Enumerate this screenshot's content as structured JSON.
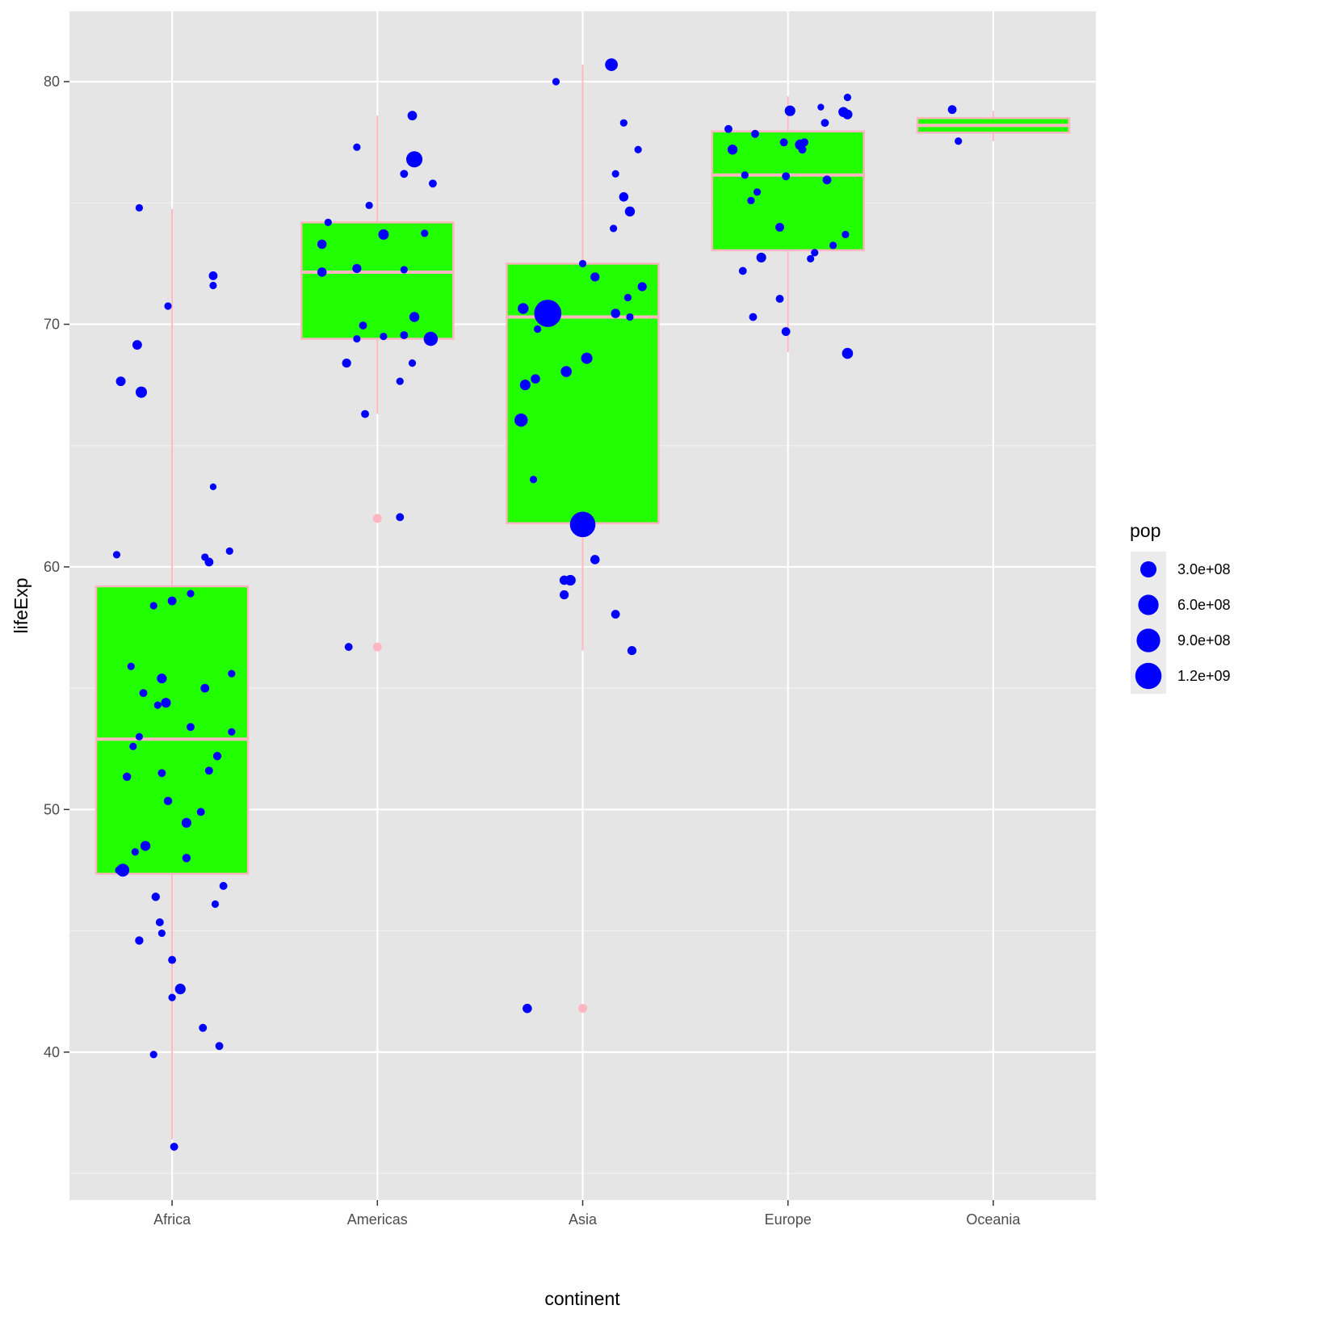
{
  "chart_data": {
    "type": "boxplot+jitter",
    "xlabel": "continent",
    "ylabel": "lifeExp",
    "ylim": [
      33.9,
      82.9
    ],
    "yticks": [
      "40",
      "50",
      "60",
      "70",
      "80"
    ],
    "ytick_values": [
      40,
      50,
      60,
      70,
      80
    ],
    "yminor": [
      35,
      45,
      55,
      65,
      75
    ],
    "categories": [
      "Africa",
      "Americas",
      "Asia",
      "Europe",
      "Oceania"
    ],
    "box_fill": "#22ff00",
    "box_line": "#ffb6c1",
    "point_color": "#0000ff",
    "outlier_color": "#ffb6c1",
    "boxes": [
      {
        "category": "Africa",
        "whisker_low": 36.4,
        "q1": 47.35,
        "median": 52.9,
        "q3": 59.2,
        "whisker_high": 74.75,
        "outliers": []
      },
      {
        "category": "Americas",
        "whisker_low": 66.3,
        "q1": 69.4,
        "median": 72.15,
        "q3": 74.2,
        "whisker_high": 78.6,
        "outliers": [
          62.0,
          56.7
        ]
      },
      {
        "category": "Asia",
        "whisker_low": 56.55,
        "q1": 61.8,
        "median": 70.3,
        "q3": 72.5,
        "whisker_high": 80.7,
        "outliers": [
          41.8
        ]
      },
      {
        "category": "Europe",
        "whisker_low": 68.85,
        "q1": 73.05,
        "median": 76.15,
        "q3": 77.95,
        "whisker_high": 79.4,
        "outliers": []
      },
      {
        "category": "Oceania",
        "whisker_low": 77.55,
        "q1": 77.9,
        "median": 78.2,
        "q3": 78.5,
        "whisker_high": 78.8,
        "outliers": []
      }
    ],
    "points_fields": [
      "jitter_offset",
      "lifeExp",
      "pop_millions"
    ],
    "points": {
      "Africa": [
        [
          -0.16,
          74.8,
          5
        ],
        [
          -0.02,
          70.75,
          5
        ],
        [
          -0.17,
          69.15,
          35
        ],
        [
          -0.25,
          67.65,
          35
        ],
        [
          -0.15,
          67.2,
          80
        ],
        [
          0.2,
          72.0,
          20
        ],
        [
          0.2,
          71.6,
          5
        ],
        [
          0.2,
          63.3,
          1
        ],
        [
          -0.27,
          60.5,
          5
        ],
        [
          0.16,
          60.4,
          5
        ],
        [
          0.18,
          60.2,
          20
        ],
        [
          0.28,
          60.65,
          5
        ],
        [
          0.09,
          58.9,
          5
        ],
        [
          0,
          58.6,
          20
        ],
        [
          -0.09,
          58.4,
          5
        ],
        [
          -0.2,
          55.9,
          5
        ],
        [
          -0.05,
          55.4,
          40
        ],
        [
          0.29,
          55.6,
          5
        ],
        [
          -0.14,
          54.8,
          10
        ],
        [
          0.16,
          55.0,
          20
        ],
        [
          -0.03,
          54.4,
          40
        ],
        [
          -0.07,
          54.3,
          5
        ],
        [
          -0.16,
          53.0,
          5
        ],
        [
          0.09,
          53.4,
          10
        ],
        [
          0.29,
          53.2,
          5
        ],
        [
          -0.19,
          52.6,
          5
        ],
        [
          0.22,
          52.2,
          15
        ],
        [
          -0.22,
          51.35,
          15
        ],
        [
          -0.05,
          51.5,
          10
        ],
        [
          0.18,
          51.6,
          10
        ],
        [
          -0.02,
          50.35,
          15
        ],
        [
          0.14,
          49.9,
          10
        ],
        [
          0.07,
          49.45,
          40
        ],
        [
          -0.13,
          48.5,
          45
        ],
        [
          -0.18,
          48.25,
          5
        ],
        [
          0.07,
          48.0,
          15
        ],
        [
          -0.26,
          47.5,
          5
        ],
        [
          -0.24,
          47.5,
          135
        ],
        [
          0.25,
          46.85,
          10
        ],
        [
          -0.08,
          46.4,
          15
        ],
        [
          0.21,
          46.1,
          5
        ],
        [
          -0.06,
          45.35,
          10
        ],
        [
          -0.05,
          44.9,
          5
        ],
        [
          -0.16,
          44.6,
          15
        ],
        [
          0,
          43.8,
          10
        ],
        [
          0.04,
          42.6,
          60
        ],
        [
          0,
          42.25,
          5
        ],
        [
          0.15,
          41.0,
          10
        ],
        [
          0.23,
          40.25,
          10
        ],
        [
          -0.09,
          39.9,
          5
        ],
        [
          0.01,
          36.1,
          10
        ]
      ],
      "Americas": [
        [
          -0.1,
          77.3,
          5
        ],
        [
          -0.04,
          74.9,
          5
        ],
        [
          -0.24,
          74.2,
          5
        ],
        [
          -0.27,
          73.3,
          30
        ],
        [
          0.03,
          73.7,
          55
        ],
        [
          0.23,
          73.75,
          5
        ],
        [
          0.17,
          78.6,
          33
        ],
        [
          0.18,
          76.8,
          300
        ],
        [
          0.13,
          76.2,
          10
        ],
        [
          0.27,
          75.8,
          10
        ],
        [
          -0.27,
          72.15,
          30
        ],
        [
          -0.1,
          72.3,
          25
        ],
        [
          0.13,
          72.25,
          5
        ],
        [
          0.18,
          70.3,
          45
        ],
        [
          -0.07,
          69.95,
          10
        ],
        [
          -0.1,
          69.4,
          5
        ],
        [
          0.03,
          69.5,
          5
        ],
        [
          0.13,
          69.55,
          10
        ],
        [
          0.26,
          69.4,
          190
        ],
        [
          -0.15,
          68.4,
          25
        ],
        [
          0.17,
          68.4,
          5
        ],
        [
          0.11,
          67.65,
          5
        ],
        [
          -0.06,
          66.3,
          10
        ],
        [
          0.11,
          62.05,
          10
        ],
        [
          -0.14,
          56.7,
          10
        ]
      ],
      "Asia": [
        [
          -0.13,
          80.0,
          5
        ],
        [
          0.14,
          80.7,
          127
        ],
        [
          0.2,
          78.3,
          5
        ],
        [
          0.27,
          77.2,
          5
        ],
        [
          0.16,
          76.2,
          5
        ],
        [
          0.2,
          75.25,
          30
        ],
        [
          0.23,
          74.65,
          45
        ],
        [
          0.15,
          73.95,
          5
        ],
        [
          0,
          72.5,
          5
        ],
        [
          0.06,
          71.95,
          25
        ],
        [
          0.29,
          71.55,
          25
        ],
        [
          0.22,
          71.1,
          5
        ],
        [
          -0.17,
          70.45,
          1318
        ],
        [
          -0.29,
          70.65,
          65
        ],
        [
          0.16,
          70.45,
          30
        ],
        [
          0.23,
          70.3,
          5
        ],
        [
          -0.22,
          69.8,
          5
        ],
        [
          0.02,
          68.6,
          80
        ],
        [
          -0.08,
          68.05,
          70
        ],
        [
          -0.28,
          67.5,
          60
        ],
        [
          -0.23,
          67.75,
          30
        ],
        [
          -0.3,
          66.05,
          150
        ],
        [
          -0.24,
          63.6,
          5
        ],
        [
          0,
          61.75,
          1110
        ],
        [
          0.06,
          60.3,
          30
        ],
        [
          -0.09,
          59.45,
          30
        ],
        [
          -0.06,
          59.45,
          60
        ],
        [
          -0.09,
          58.85,
          25
        ],
        [
          0.16,
          58.05,
          20
        ],
        [
          0.24,
          56.55,
          25
        ],
        [
          -0.27,
          41.8,
          30
        ]
      ],
      "Europe": [
        [
          0.29,
          79.35,
          5
        ],
        [
          0.16,
          78.95,
          1
        ],
        [
          0.01,
          78.8,
          60
        ],
        [
          0.27,
          78.75,
          45
        ],
        [
          0.29,
          78.65,
          40
        ],
        [
          -0.29,
          78.05,
          10
        ],
        [
          0.18,
          78.3,
          10
        ],
        [
          -0.16,
          77.85,
          10
        ],
        [
          -0.27,
          77.2,
          45
        ],
        [
          -0.02,
          77.5,
          10
        ],
        [
          0.08,
          77.5,
          10
        ],
        [
          0.06,
          77.4,
          60
        ],
        [
          0.07,
          77.2,
          10
        ],
        [
          -0.21,
          76.15,
          5
        ],
        [
          -0.01,
          76.1,
          10
        ],
        [
          0.19,
          75.95,
          20
        ],
        [
          -0.15,
          75.45,
          5
        ],
        [
          -0.18,
          75.1,
          5
        ],
        [
          -0.04,
          74.0,
          20
        ],
        [
          0.28,
          73.7,
          5
        ],
        [
          0.22,
          73.25,
          5
        ],
        [
          0.13,
          72.95,
          5
        ],
        [
          0.11,
          72.7,
          5
        ],
        [
          -0.13,
          72.75,
          40
        ],
        [
          -0.22,
          72.2,
          10
        ],
        [
          -0.04,
          71.05,
          10
        ],
        [
          -0.17,
          70.3,
          10
        ],
        [
          -0.01,
          69.7,
          20
        ],
        [
          0.29,
          68.8,
          70
        ]
      ],
      "Oceania": [
        [
          -0.2,
          78.85,
          20
        ],
        [
          -0.17,
          77.55,
          5
        ]
      ]
    },
    "legend": {
      "title": "pop",
      "position": "right",
      "entries": [
        {
          "label": "3.0e+08",
          "pop_millions": 300
        },
        {
          "label": "6.0e+08",
          "pop_millions": 600
        },
        {
          "label": "9.0e+08",
          "pop_millions": 900
        },
        {
          "label": "1.2e+09",
          "pop_millions": 1200
        }
      ]
    }
  }
}
